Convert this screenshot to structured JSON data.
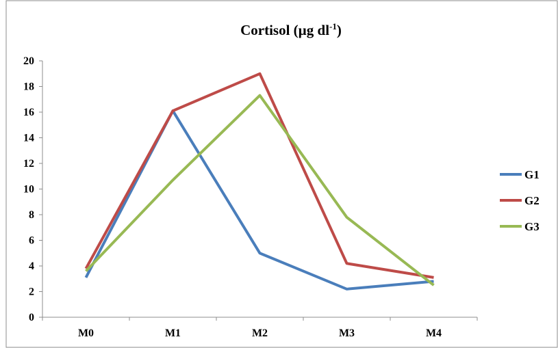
{
  "chart_data": {
    "type": "line",
    "title": {
      "main": "Cortisol (µg dl",
      "sup": "-1",
      "close": ")"
    },
    "categories": [
      "M0",
      "M1",
      "M2",
      "M3",
      "M4"
    ],
    "ylim": [
      0,
      20
    ],
    "yticks": [
      "0",
      "2",
      "4",
      "6",
      "8",
      "10",
      "12",
      "14",
      "16",
      "18",
      "20"
    ],
    "grid": false,
    "legend_position": "right",
    "series": [
      {
        "name": "G1",
        "color": "#4a7ebb",
        "values": [
          3.1,
          16.1,
          5.0,
          2.2,
          2.8
        ]
      },
      {
        "name": "G2",
        "color": "#be4b48",
        "values": [
          3.8,
          16.1,
          19.0,
          4.2,
          3.1
        ]
      },
      {
        "name": "G3",
        "color": "#98b954",
        "values": [
          3.6,
          10.7,
          17.3,
          7.8,
          2.5
        ]
      }
    ]
  }
}
